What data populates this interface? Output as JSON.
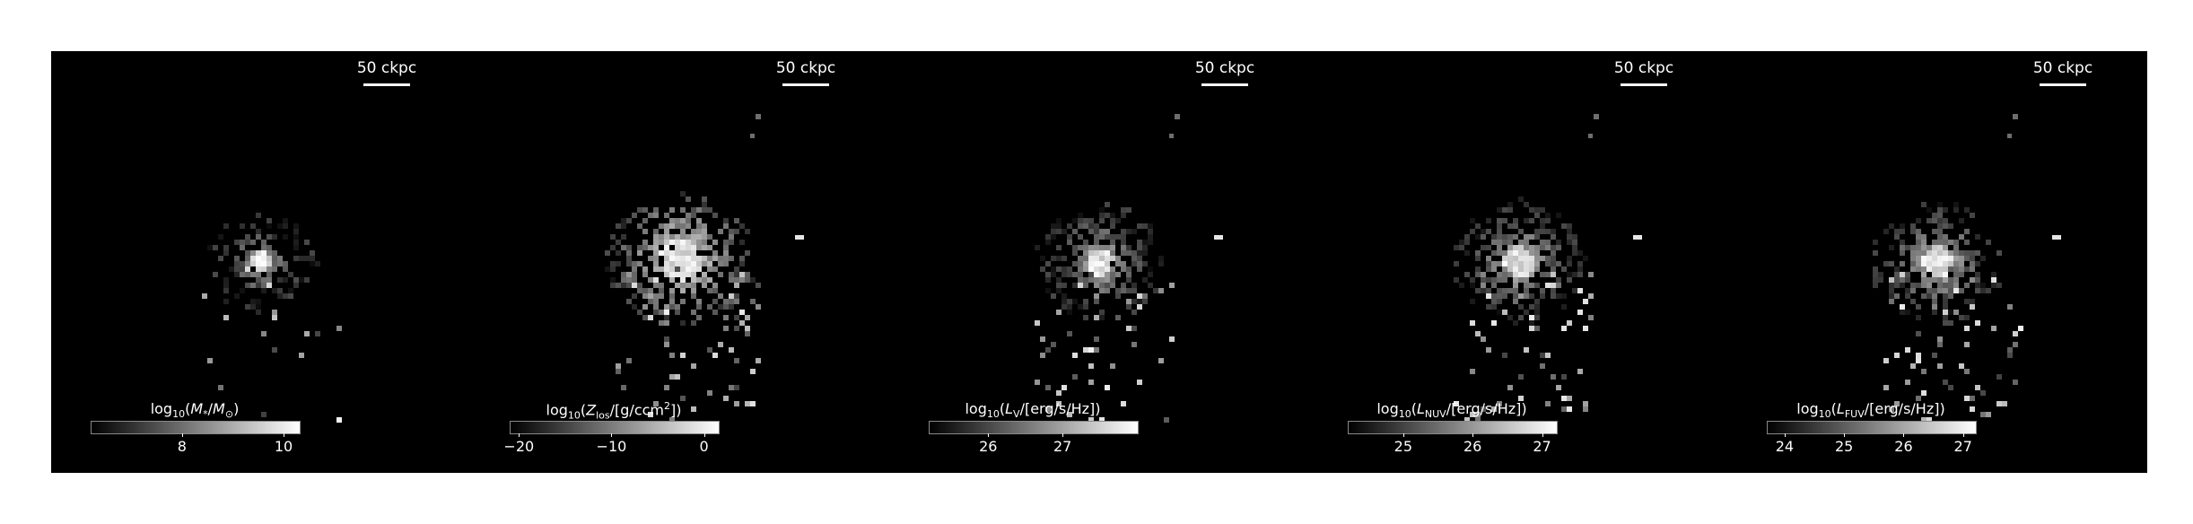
{
  "scale_bar_label": "50 ckpc",
  "panels": [
    {
      "quantity": "stellar-mass",
      "colorbar_label": {
        "prefix": "log",
        "sub": "10",
        "body": "(M",
        "sub2": "*",
        "mid": "/M",
        "sub3": "⊙",
        "end": ")"
      },
      "tick_labels": [
        "8",
        "10"
      ],
      "colorbar_range": [
        6.2,
        10.3
      ],
      "tick_values": [
        8,
        10
      ]
    },
    {
      "quantity": "metallicity-los",
      "colorbar_label": {
        "prefix": "log",
        "sub": "10",
        "body": "(Z",
        "sub2": "los",
        "mid": "/[g/ccm",
        "sup": "2",
        "end": "])"
      },
      "tick_labels": [
        "−20",
        "−10",
        "0"
      ],
      "colorbar_range": [
        -21,
        1.5
      ],
      "tick_values": [
        -20,
        -10,
        0
      ]
    },
    {
      "quantity": "luminosity-v",
      "colorbar_label": {
        "prefix": "log",
        "sub": "10",
        "body": "(L",
        "sub2": "V",
        "mid": "/[erg/s/Hz])"
      },
      "tick_labels": [
        "26",
        "27"
      ],
      "colorbar_range": [
        25.2,
        28.0
      ],
      "tick_values": [
        26,
        27
      ]
    },
    {
      "quantity": "luminosity-nuv",
      "colorbar_label": {
        "prefix": "log",
        "sub": "10",
        "body": "(L",
        "sub2": "NUV",
        "mid": "/[erg/s/Hz])"
      },
      "tick_labels": [
        "25",
        "26",
        "27"
      ],
      "colorbar_range": [
        24.2,
        27.2
      ],
      "tick_values": [
        25,
        26,
        27
      ]
    },
    {
      "quantity": "luminosity-fuv",
      "colorbar_label": {
        "prefix": "log",
        "sub": "10",
        "body": "(L",
        "sub2": "FUV",
        "mid": "/[erg/s/Hz])"
      },
      "tick_labels": [
        "24",
        "25",
        "26",
        "27"
      ],
      "colorbar_range": [
        23.7,
        27.2
      ],
      "tick_values": [
        24,
        25,
        26,
        27
      ]
    }
  ]
}
